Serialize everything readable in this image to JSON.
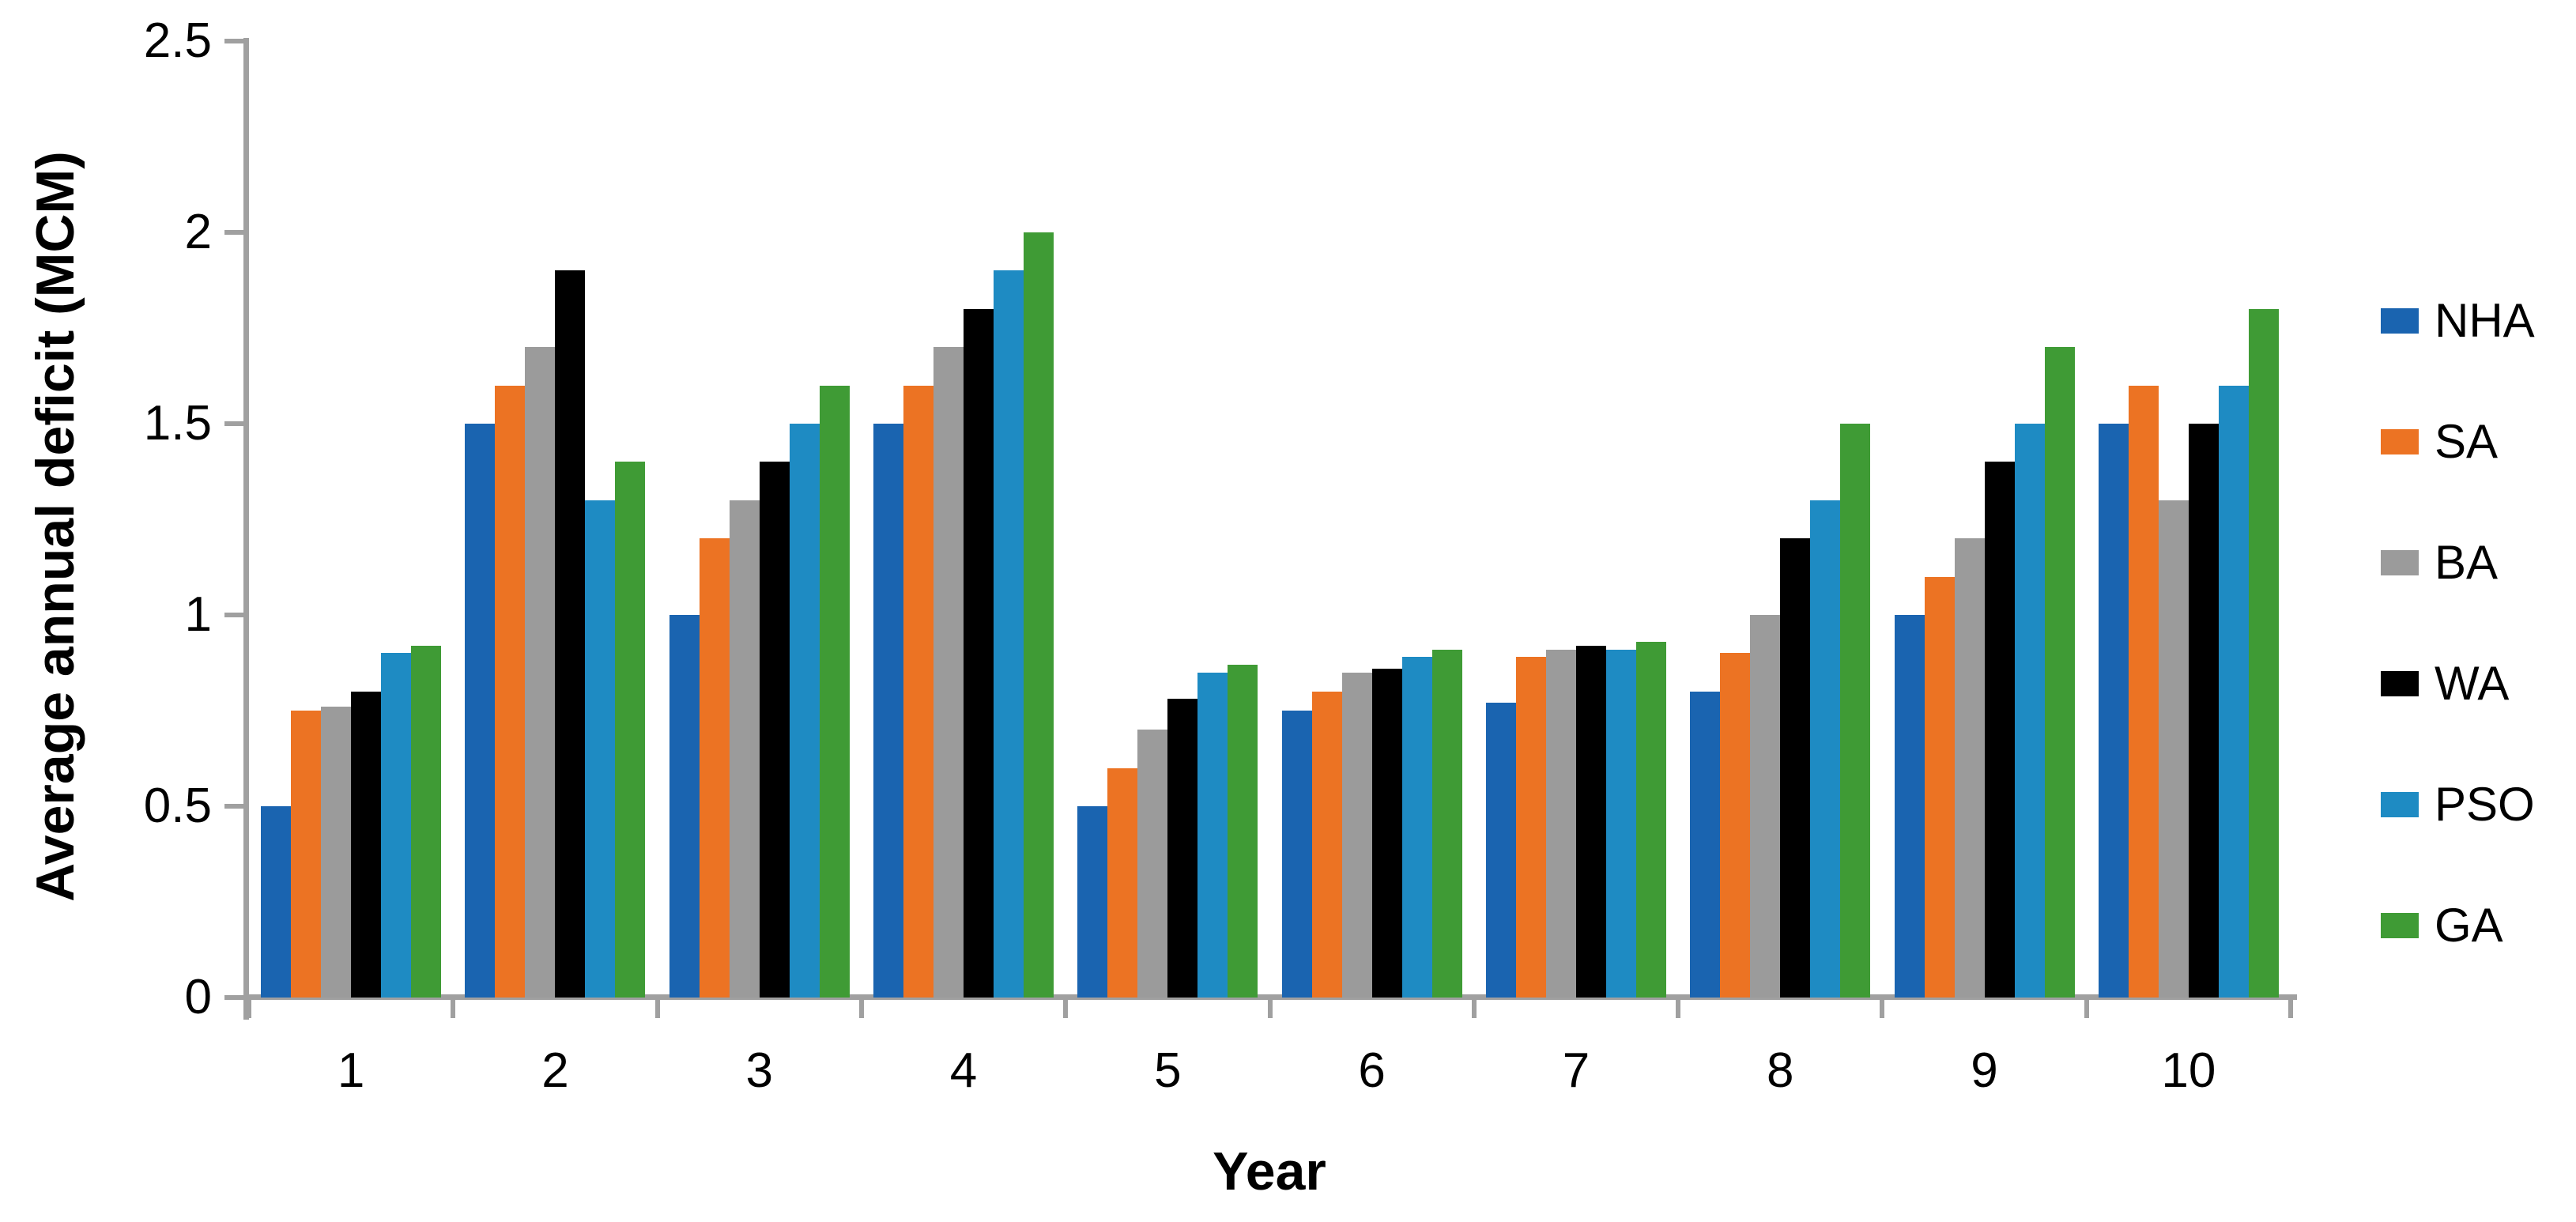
{
  "chart_data": {
    "type": "bar",
    "title": "",
    "xlabel": "Year",
    "ylabel": "Average annual deficit (MCM)",
    "categories": [
      "1",
      "2",
      "3",
      "4",
      "5",
      "6",
      "7",
      "8",
      "9",
      "10"
    ],
    "series": [
      {
        "name": "NHA",
        "color": "#1a64b0",
        "values": [
          0.5,
          1.5,
          1.0,
          1.5,
          0.5,
          0.75,
          0.77,
          0.8,
          1.0,
          1.5
        ]
      },
      {
        "name": "SA",
        "color": "#ec7323",
        "values": [
          0.75,
          1.6,
          1.2,
          1.6,
          0.6,
          0.8,
          0.89,
          0.9,
          1.1,
          1.6
        ]
      },
      {
        "name": "BA",
        "color": "#9b9b9b",
        "values": [
          0.76,
          1.7,
          1.3,
          1.7,
          0.7,
          0.85,
          0.91,
          1.0,
          1.2,
          1.3
        ]
      },
      {
        "name": "WA",
        "color": "#000000",
        "values": [
          0.8,
          1.9,
          1.4,
          1.8,
          0.78,
          0.86,
          0.92,
          1.2,
          1.4,
          1.5
        ]
      },
      {
        "name": "PSO",
        "color": "#1e8bc3",
        "values": [
          0.9,
          1.3,
          1.5,
          1.9,
          0.85,
          0.89,
          0.91,
          1.3,
          1.5,
          1.6
        ]
      },
      {
        "name": "GA",
        "color": "#3f9b35",
        "values": [
          0.92,
          1.4,
          1.6,
          2.0,
          0.87,
          0.91,
          0.93,
          1.5,
          1.7,
          1.8
        ]
      }
    ],
    "ylim": [
      0,
      2.5
    ],
    "yticks": [
      0,
      0.5,
      1,
      1.5,
      2,
      2.5
    ],
    "ytick_labels": [
      "0",
      "0.5",
      "1",
      "1.5",
      "2",
      "2.5"
    ],
    "grid": false,
    "legend_position": "right",
    "axis_color": "#a0a0a0"
  }
}
